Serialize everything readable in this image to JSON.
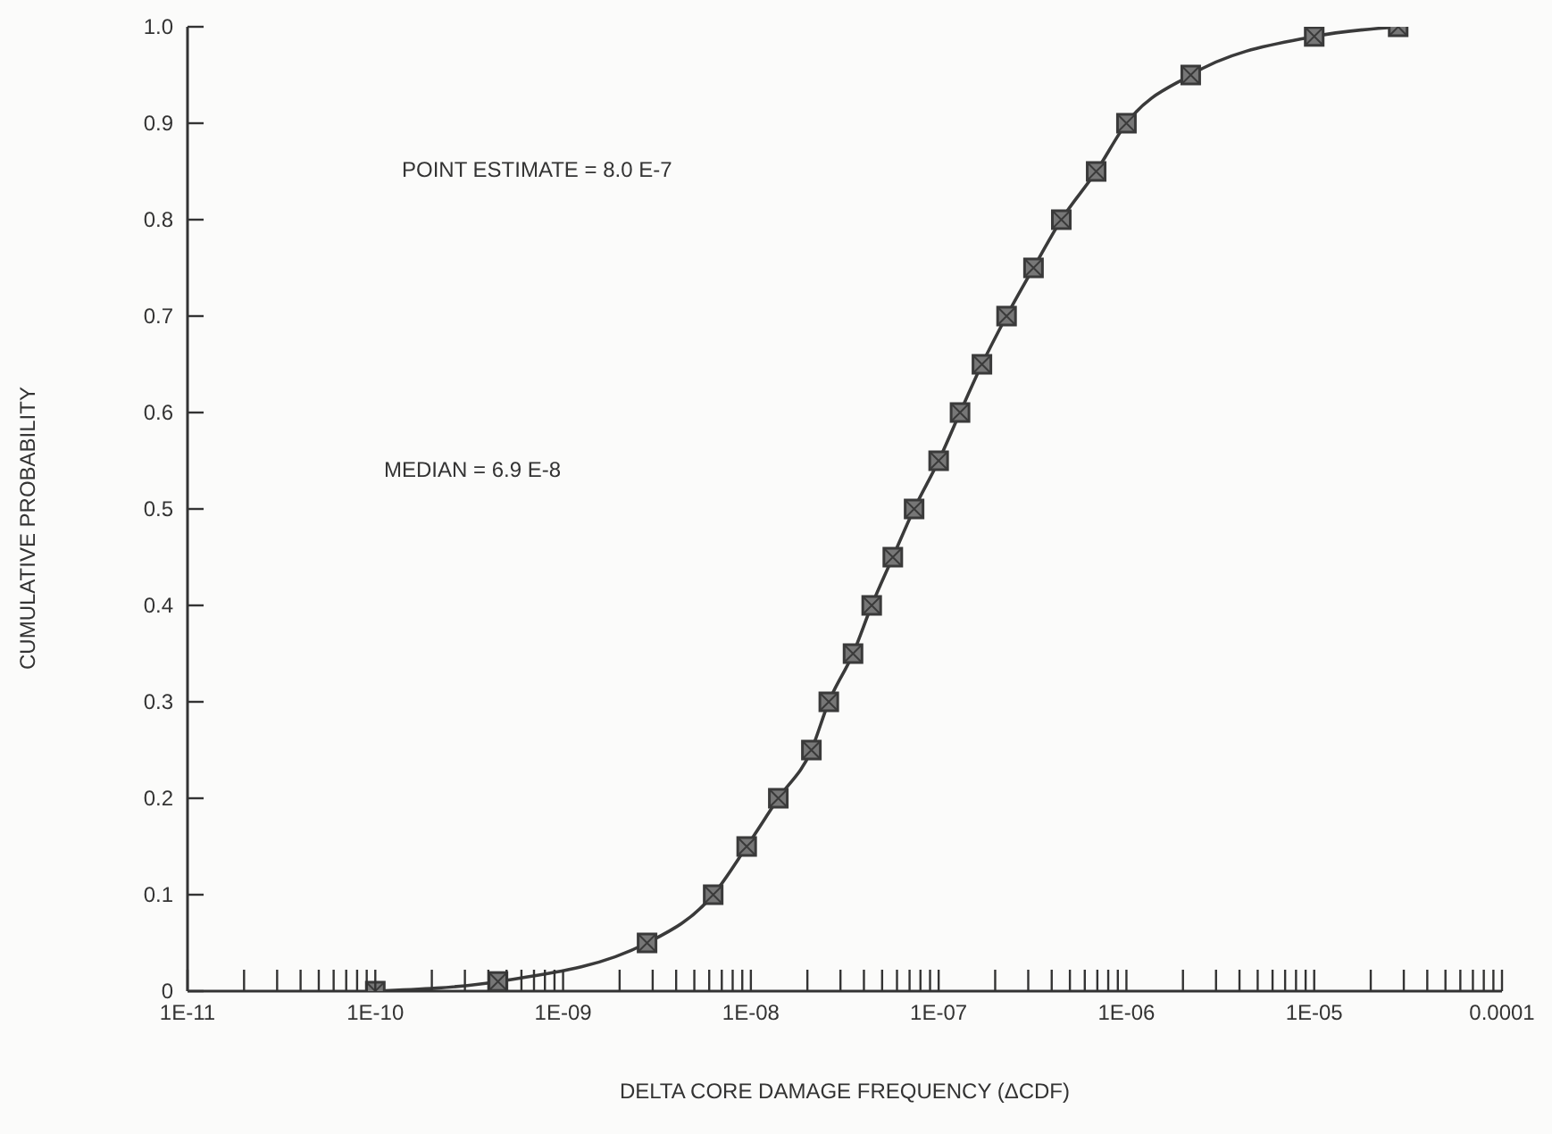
{
  "chart_data": {
    "type": "line",
    "xlabel": "DELTA CORE DAMAGE FREQUENCY (ΔCDF)",
    "ylabel": "CUMULATIVE PROBABILITY",
    "x": [
      1e-10,
      4.5e-10,
      2.8e-09,
      6.3e-09,
      9.5e-09,
      1.4e-08,
      2.1e-08,
      2.6e-08,
      3.5e-08,
      4.4e-08,
      5.7e-08,
      7.4e-08,
      1e-07,
      1.3e-07,
      1.7e-07,
      2.3e-07,
      3.2e-07,
      4.5e-07,
      6.9e-07,
      1e-06,
      2.2e-06,
      1e-05,
      2.8e-05
    ],
    "series": [
      {
        "color": "#3a3a3a",
        "values": [
          0,
          0.01,
          0.05,
          0.1,
          0.15,
          0.2,
          0.25,
          0.3,
          0.35,
          0.4,
          0.45,
          0.5,
          0.55,
          0.6,
          0.65,
          0.7,
          0.75,
          0.8,
          0.85,
          0.9,
          0.95,
          0.99,
          1.0
        ]
      }
    ],
    "log": "x",
    "marker": "square",
    "line_style": "solid",
    "xlim": [
      1e-11,
      0.0001
    ],
    "xticks": [
      {
        "value": 1e-11,
        "label": "1E-11"
      },
      {
        "value": 2e-11,
        "label": null
      },
      {
        "value": 3e-11,
        "label": null
      },
      {
        "value": 4e-11,
        "label": null
      },
      {
        "value": 5e-11,
        "label": null
      },
      {
        "value": 6e-11,
        "label": null
      },
      {
        "value": 7e-11,
        "label": null
      },
      {
        "value": 8e-11,
        "label": null
      },
      {
        "value": 9e-11,
        "label": null
      },
      {
        "value": 1e-10,
        "label": "1E-10"
      },
      {
        "value": 2e-10,
        "label": null
      },
      {
        "value": 3e-10,
        "label": null
      },
      {
        "value": 4e-10,
        "label": null
      },
      {
        "value": 5e-10,
        "label": null
      },
      {
        "value": 6e-10,
        "label": null
      },
      {
        "value": 7e-10,
        "label": null
      },
      {
        "value": 8e-10,
        "label": null
      },
      {
        "value": 9e-10,
        "label": null
      },
      {
        "value": 1e-09,
        "label": "1E-09"
      },
      {
        "value": 2e-09,
        "label": null
      },
      {
        "value": 3e-09,
        "label": null
      },
      {
        "value": 4e-09,
        "label": null
      },
      {
        "value": 5e-09,
        "label": null
      },
      {
        "value": 6e-09,
        "label": null
      },
      {
        "value": 7e-09,
        "label": null
      },
      {
        "value": 8e-09,
        "label": null
      },
      {
        "value": 9e-09,
        "label": null
      },
      {
        "value": 1e-08,
        "label": "1E-08"
      },
      {
        "value": 2e-08,
        "label": null
      },
      {
        "value": 3e-08,
        "label": null
      },
      {
        "value": 4e-08,
        "label": null
      },
      {
        "value": 5e-08,
        "label": null
      },
      {
        "value": 6e-08,
        "label": null
      },
      {
        "value": 7e-08,
        "label": null
      },
      {
        "value": 8e-08,
        "label": null
      },
      {
        "value": 9e-08,
        "label": null
      },
      {
        "value": 1e-07,
        "label": "1E-07"
      },
      {
        "value": 2e-07,
        "label": null
      },
      {
        "value": 3e-07,
        "label": null
      },
      {
        "value": 4e-07,
        "label": null
      },
      {
        "value": 5e-07,
        "label": null
      },
      {
        "value": 6e-07,
        "label": null
      },
      {
        "value": 7e-07,
        "label": null
      },
      {
        "value": 8e-07,
        "label": null
      },
      {
        "value": 9e-07,
        "label": null
      },
      {
        "value": 1e-06,
        "label": "1E-06"
      },
      {
        "value": 2e-06,
        "label": null
      },
      {
        "value": 3e-06,
        "label": null
      },
      {
        "value": 4e-06,
        "label": null
      },
      {
        "value": 5e-06,
        "label": null
      },
      {
        "value": 6e-06,
        "label": null
      },
      {
        "value": 7e-06,
        "label": null
      },
      {
        "value": 8e-06,
        "label": null
      },
      {
        "value": 9e-06,
        "label": null
      },
      {
        "value": 1e-05,
        "label": "1E-05"
      },
      {
        "value": 2e-05,
        "label": null
      },
      {
        "value": 3e-05,
        "label": null
      },
      {
        "value": 4e-05,
        "label": null
      },
      {
        "value": 5e-05,
        "label": null
      },
      {
        "value": 6e-05,
        "label": null
      },
      {
        "value": 7e-05,
        "label": null
      },
      {
        "value": 8e-05,
        "label": null
      },
      {
        "value": 9e-05,
        "label": null
      },
      0.0001
    ],
    "ylim": [
      0,
      1
    ],
    "yticks": [
      0,
      0.1,
      0.2,
      0.3,
      0.4,
      0.5,
      0.6,
      0.7,
      0.8,
      0.9,
      {
        "value": 1,
        "label": "1.0"
      }
    ],
    "annotations": [
      "POINT ESTIMATE = 8.0 E-7",
      "MEDIAN = 6.9 E-8"
    ]
  }
}
